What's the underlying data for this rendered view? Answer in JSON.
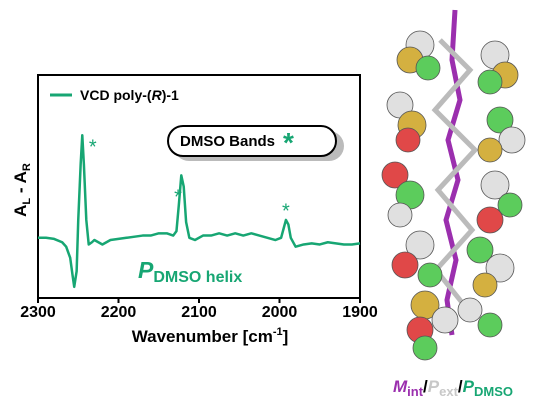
{
  "chart_data": {
    "type": "line",
    "x_label": [
      "Wavenumber [cm",
      "-1",
      "]"
    ],
    "y_label": [
      "A",
      "L",
      " - A",
      "R"
    ],
    "xlim": [
      2300,
      1900
    ],
    "xticks": [
      2300,
      2200,
      2100,
      2000,
      1900
    ],
    "ylim": [
      0,
      100
    ],
    "series": [
      {
        "name": [
          "VCD poly-(",
          "R",
          ")-1"
        ],
        "color": "#17a673",
        "x": [
          2300,
          2290,
          2280,
          2270,
          2265,
          2260,
          2257,
          2255,
          2252,
          2250,
          2247,
          2245,
          2243,
          2240,
          2237,
          2233,
          2230,
          2225,
          2220,
          2215,
          2210,
          2200,
          2190,
          2180,
          2170,
          2160,
          2150,
          2140,
          2132,
          2128,
          2125,
          2122,
          2119,
          2116,
          2112,
          2105,
          2095,
          2085,
          2075,
          2065,
          2055,
          2045,
          2035,
          2025,
          2015,
          2005,
          1998,
          1995,
          1992,
          1989,
          1986,
          1980,
          1970,
          1960,
          1950,
          1940,
          1930,
          1920,
          1910,
          1900
        ],
        "values": [
          27,
          27,
          26.5,
          25,
          23,
          18,
          10,
          5,
          12,
          35,
          60,
          73,
          60,
          35,
          24,
          25,
          26,
          25,
          24,
          25,
          26,
          26.5,
          27,
          27.5,
          28,
          28,
          29,
          29,
          28,
          30,
          42,
          55,
          50,
          34,
          27,
          26,
          28,
          28,
          29,
          28,
          29,
          28,
          29,
          28,
          27,
          26,
          27,
          31,
          35,
          33,
          27,
          23,
          24,
          24.5,
          24,
          25,
          24.5,
          24,
          24,
          24.5
        ]
      }
    ],
    "peak_marks": [
      {
        "text": "*",
        "x": 2232
      },
      {
        "text": "*",
        "x": 2126
      },
      {
        "text": "*",
        "x": 1992
      }
    ],
    "annotation": [
      "DMSO Bands",
      "*"
    ],
    "helix_label": [
      "P",
      "DMSO helix"
    ],
    "caption": [
      {
        "text": "M",
        "color": "#9b2fae"
      },
      {
        "text": "int",
        "color": "#9b2fae"
      },
      {
        "text": "/",
        "color": "#000000"
      },
      {
        "text": "P",
        "color": "#c8c8c8"
      },
      {
        "text": "ext",
        "color": "#c8c8c8"
      },
      {
        "text": "/",
        "color": "#000000"
      },
      {
        "text": "P",
        "color": "#17a673"
      },
      {
        "text": "DMSO",
        "color": "#17a673"
      }
    ]
  }
}
